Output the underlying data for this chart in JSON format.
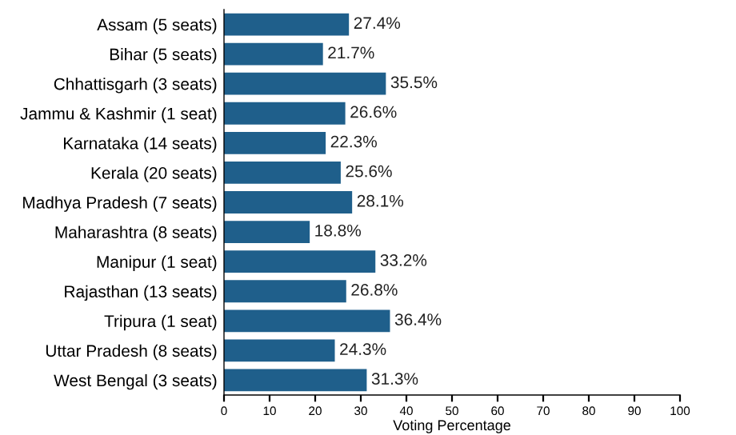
{
  "chart_data": {
    "type": "bar",
    "orientation": "horizontal",
    "xlabel": "Voting Percentage",
    "categories": [
      "Assam (5 seats)",
      "Bihar (5 seats)",
      "Chhattisgarh (3 seats)",
      "Jammu & Kashmir (1 seat)",
      "Karnataka (14 seats)",
      "Kerala (20 seats)",
      "Madhya Pradesh (7 seats)",
      "Maharashtra (8 seats)",
      "Manipur (1 seat)",
      "Rajasthan (13 seats)",
      "Tripura (1 seat)",
      "Uttar Pradesh (8 seats)",
      "West Bengal (3 seats)"
    ],
    "values": [
      27.4,
      21.7,
      35.5,
      26.6,
      22.3,
      25.6,
      28.1,
      18.8,
      33.2,
      26.8,
      36.4,
      24.3,
      31.3
    ],
    "value_labels": [
      "27.4%",
      "21.7%",
      "35.5%",
      "26.6%",
      "22.3%",
      "25.6%",
      "28.1%",
      "18.8%",
      "33.2%",
      "26.8%",
      "36.4%",
      "24.3%",
      "31.3%"
    ],
    "color": "#1f5f8b",
    "xlim": [
      0,
      100
    ],
    "xticks": [
      0,
      10,
      20,
      30,
      40,
      50,
      60,
      70,
      80,
      90,
      100
    ],
    "grid": false,
    "legend": false
  }
}
